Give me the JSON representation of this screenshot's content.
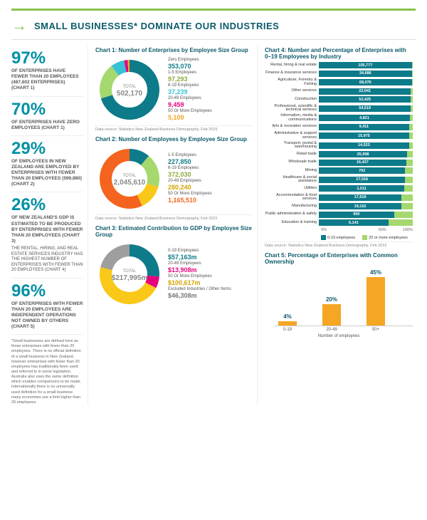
{
  "header": {
    "title": "SMALL BUSINESSES* DOMINATE OUR INDUSTRIES"
  },
  "stats": [
    {
      "pct": "97%",
      "txt": "OF ENTERPRISES HAVE FEWER THAN 20 EMPLOYEES (487,602 ENTERPRISES) (CHART 1)"
    },
    {
      "pct": "70%",
      "txt": "OF ENTERPRISES HAVE ZERO EMPLOYEES (CHART 1)"
    },
    {
      "pct": "29%",
      "txt": "OF EMPLOYEES IN NEW ZEALAND ARE EMPLOYED BY ENTERPRISES WITH FEWER THAN 20 EMPLOYEES (599,880) (CHART 2)"
    },
    {
      "pct": "26%",
      "txt": "OF NEW ZEALAND'S GDP IS ESTIMATED TO BE PRODUCED BY ENTERPRISES WITH FEWER THAN 20 EMPLOYEES (CHART 3)",
      "extra": "THE RENTAL, HIRING, AND REAL ESTATE SERVICES INDUSTRY HAS THE HIGHEST NUMBER OF ENTERPRISES WITH FEWER THAN 20 EMPLOYEES (CHART 4)"
    },
    {
      "pct": "96%",
      "txt": "OF ENTERPRISES WITH FEWER THAN 20 EMPLOYEES ARE INDEPENDENT OPERATIONS NOT OWNED BY OTHERS (CHART 5)"
    }
  ],
  "footnote": "*Small businesses are defined here as those enterprises with fewer than 20 employees. There is no official definition of a small business in New Zealand, however enterprises with fewer than 20 employees has traditionally been used and referred to in some legislation. Australia also uses the same definition which enables comparisons to be made. Internationally there is no universally used definition for a small business: many economies use a limit higher than 20 employees.",
  "chart1": {
    "title": "Chart 1: Number of Enterprises by Employee Size Group",
    "type": "donut",
    "total_label": "TOTAL",
    "total_value": "502,170",
    "slices": [
      {
        "label": "Zero Employees",
        "value": "353,070",
        "num": 353070,
        "color": "#0d7b8a",
        "txtcolor": "#0d7b8a"
      },
      {
        "label": "1-5 Employees",
        "value": "97,293",
        "num": 97293,
        "color": "#a5d86e",
        "txtcolor": "#8bab3e"
      },
      {
        "label": "6-19 Employees",
        "value": "37,239",
        "num": 37239,
        "color": "#35c2d6",
        "txtcolor": "#35c2d6"
      },
      {
        "label": "20-49 Employees",
        "value": "9,459",
        "num": 9459,
        "color": "#e6007e",
        "txtcolor": "#e6007e"
      },
      {
        "label": "50 Or More Employees",
        "value": "5,109",
        "num": 5109,
        "color": "#f5a623",
        "txtcolor": "#f5a623"
      }
    ],
    "source": "Data source: Statistics New Zealand Business Demography, Feb 2015"
  },
  "chart2": {
    "title": "Chart 2: Number of Employees by Employee Size Group",
    "type": "donut",
    "total_label": "TOTAL",
    "total_value": "2,045,610",
    "slices": [
      {
        "label": "1-5 Employees",
        "value": "227,850",
        "num": 227850,
        "color": "#0d7b8a",
        "txtcolor": "#0d7b8a"
      },
      {
        "label": "6-19 Employees",
        "value": "372,030",
        "num": 372030,
        "color": "#a5d86e",
        "txtcolor": "#8bab3e"
      },
      {
        "label": "20-49 Employees",
        "value": "280,240",
        "num": 280240,
        "color": "#f9c818",
        "txtcolor": "#d4a300"
      },
      {
        "label": "50 Or More Employees",
        "value": "1,165,510",
        "num": 1165510,
        "color": "#f5641e",
        "txtcolor": "#f5641e"
      }
    ],
    "source": "Data source: Statistics New Zealand Business Demography, Feb 2015"
  },
  "chart3": {
    "title": "Chart 3: Estimated Contribution to GDP by Employee Size Group",
    "type": "donut",
    "total_label": "TOTAL",
    "total_value": "$217,995m",
    "slices": [
      {
        "label": "0-19 Employees",
        "value": "$57,163m",
        "num": 57163,
        "color": "#0d7b8a",
        "txtcolor": "#0d7b8a"
      },
      {
        "label": "20-49 Employees",
        "value": "$13,908m",
        "num": 13908,
        "color": "#e6007e",
        "txtcolor": "#e6007e"
      },
      {
        "label": "50 Or More Employees",
        "value": "$100,617m",
        "num": 100617,
        "color": "#f9c818",
        "txtcolor": "#d4a300"
      },
      {
        "label": "Excluded Industries / Other Items",
        "value": "$46,308m",
        "num": 46308,
        "color": "#9e9e9e",
        "txtcolor": "#777"
      }
    ],
    "source": ""
  },
  "chart4": {
    "title": "Chart 4: Number and Percentage of Enterprises with 0–19 Employees by Industry",
    "type": "hbar-stacked",
    "seg1_color": "#0d7b8a",
    "seg2_color": "#a5d86e",
    "legend1": "0-19 employees",
    "legend2": "20 or more employees",
    "axis": [
      "0%",
      "50%",
      "100%"
    ],
    "rows": [
      {
        "label": "Rental, hiring & real estate",
        "val": "105,777",
        "pct": 99
      },
      {
        "label": "Finance & insurance services",
        "val": "34,686",
        "pct": 99
      },
      {
        "label": "Agriculture, Forestry & Fishing",
        "val": "68,076",
        "pct": 99
      },
      {
        "label": "Other services",
        "val": "22,041",
        "pct": 98
      },
      {
        "label": "Construction",
        "val": "52,425",
        "pct": 98
      },
      {
        "label": "Professional, scientific & technical services",
        "val": "54,519",
        "pct": 98
      },
      {
        "label": "Information, media & communications",
        "val": "4,821",
        "pct": 97
      },
      {
        "label": "Arts & recreation services",
        "val": "9,411",
        "pct": 96
      },
      {
        "label": "Administrative & support services",
        "val": "15,975",
        "pct": 96
      },
      {
        "label": "Transport, postal & warehousing",
        "val": "14,523",
        "pct": 96
      },
      {
        "label": "Retail trade",
        "val": "25,998",
        "pct": 94
      },
      {
        "label": "Wholesale trade",
        "val": "16,437",
        "pct": 93
      },
      {
        "label": "Mining",
        "val": "702",
        "pct": 92
      },
      {
        "label": "Healthcare & social assistance",
        "val": "17,016",
        "pct": 92
      },
      {
        "label": "Utilities",
        "val": "1,011",
        "pct": 91
      },
      {
        "label": "Accommodation & food services",
        "val": "17,919",
        "pct": 88
      },
      {
        "label": "Manufacturing",
        "val": "19,152",
        "pct": 88
      },
      {
        "label": "Public administration & safety",
        "val": "990",
        "pct": 80
      },
      {
        "label": "Education & training",
        "val": "6,141",
        "pct": 74
      }
    ],
    "source": "Data source: Statistics New Zealand Business Demography, Feb 2015"
  },
  "chart5": {
    "title": "Chart 5: Percentage of Enterprises with Common Ownership",
    "type": "vbar",
    "color": "#f5a623",
    "xlabel": "Number of employees",
    "bars": [
      {
        "label": "0-19",
        "pct": 4,
        "pct_txt": "4%"
      },
      {
        "label": "20-49",
        "pct": 20,
        "pct_txt": "20%"
      },
      {
        "label": "50+",
        "pct": 45,
        "pct_txt": "45%"
      }
    ]
  }
}
